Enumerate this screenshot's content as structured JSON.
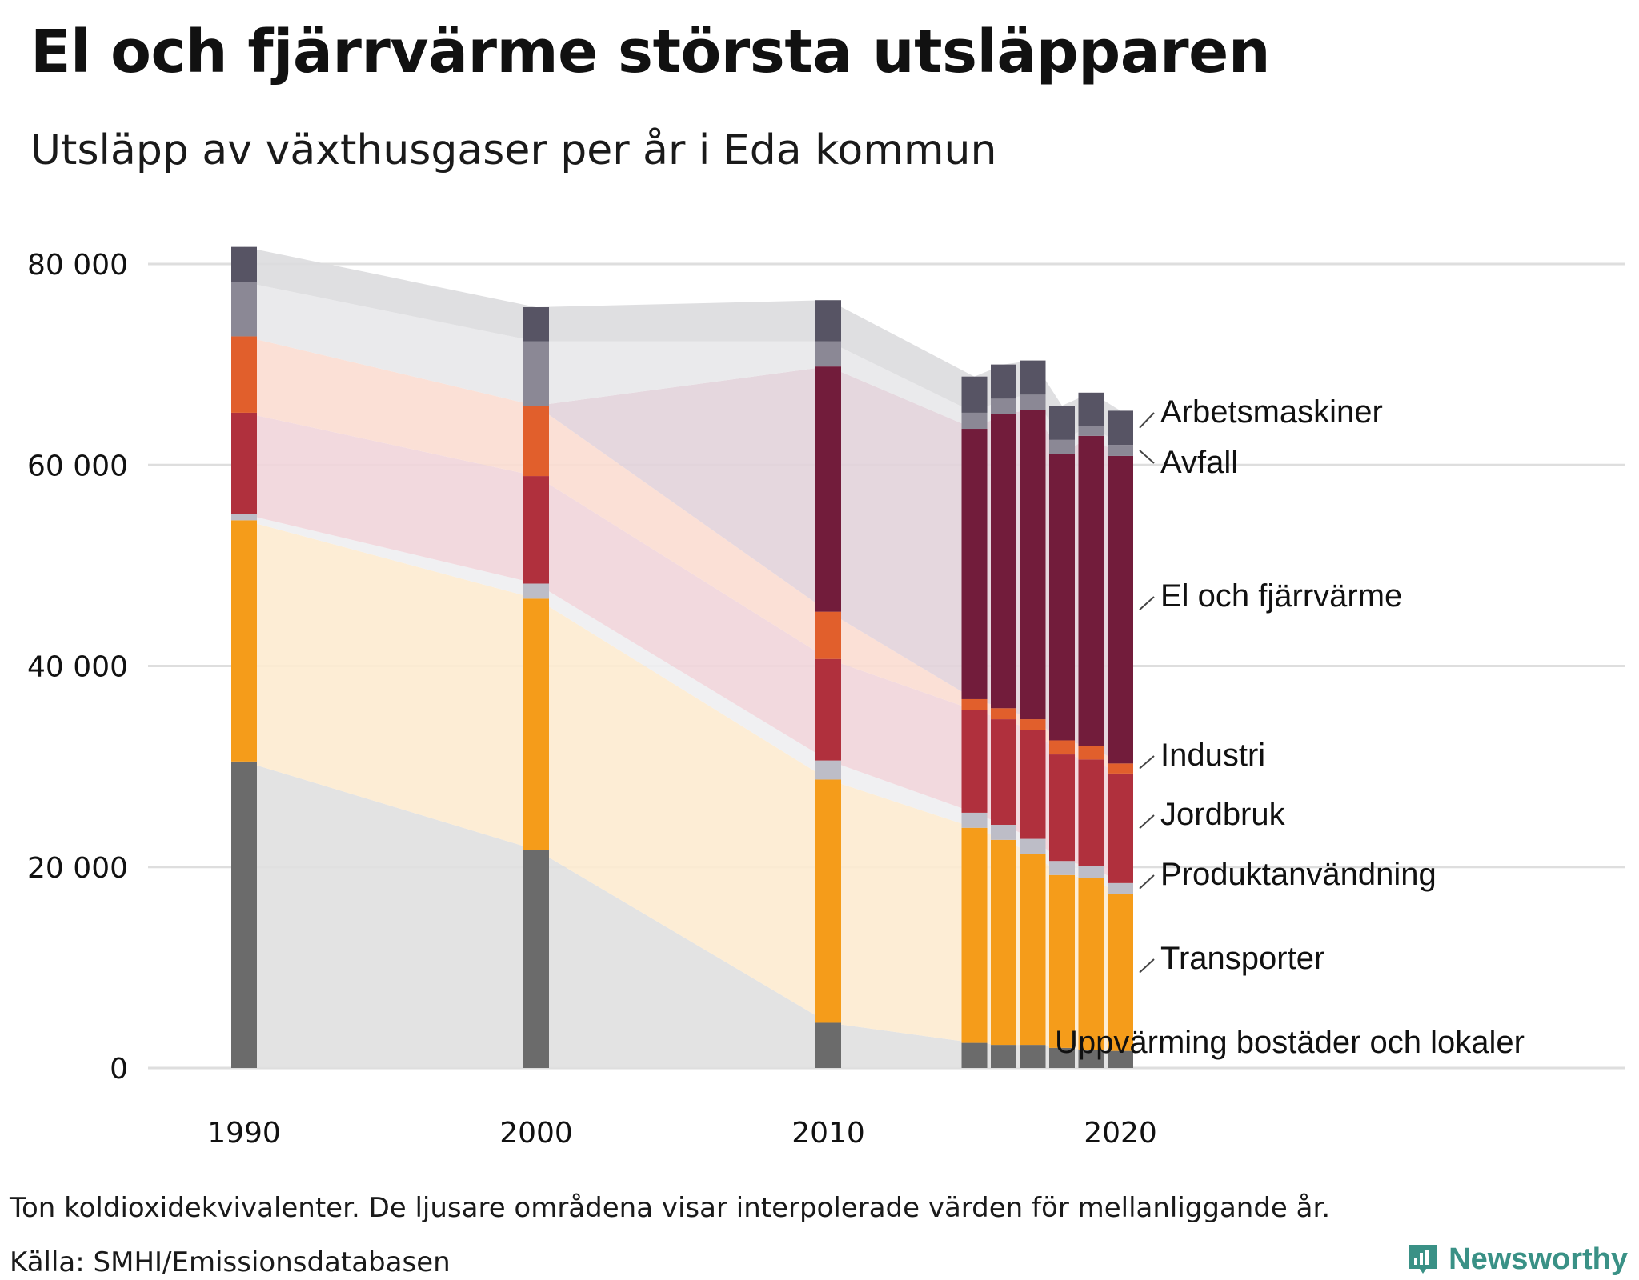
{
  "title": "El och fjärrvärme största utsläpparen",
  "subtitle": "Utsläpp av växthusgaser per år i Eda kommun",
  "footnote": "Ton koldioxidekvivalenter. De ljusare områdena visar interpolerade värden för mellanliggande år.",
  "source": "Källa: SMHI/Emissionsdatabasen",
  "brand": "Newsworthy",
  "colors": {
    "grid": "#dedede",
    "brand": "#3a9186"
  },
  "chart_data": {
    "type": "bar",
    "stacked": true,
    "x": [
      1990,
      2000,
      2010,
      2015,
      2016,
      2017,
      2018,
      2019,
      2020
    ],
    "x_ticks": [
      "1990",
      "2000",
      "2010",
      "2020"
    ],
    "ylim": [
      0,
      80000
    ],
    "y_ticks": [
      "0",
      "20 000",
      "40 000",
      "60 000",
      "80 000"
    ],
    "y_tick_values": [
      0,
      20000,
      40000,
      60000,
      80000
    ],
    "grid": true,
    "interpolated_areas": true,
    "series": [
      {
        "name": "Uppvärming bostäder och lokaler",
        "color": "#6b6b6b",
        "area_color": "#e0e0e0",
        "values": [
          30500,
          21700,
          4500,
          2500,
          2300,
          2300,
          2000,
          1800,
          1700
        ]
      },
      {
        "name": "Transporter",
        "color": "#f59c1a",
        "area_color": "#fdebd0",
        "values": [
          24000,
          25000,
          24200,
          21400,
          20400,
          19000,
          17200,
          17100,
          15600
        ]
      },
      {
        "name": "Produktanvändning",
        "color": "#bdbdc7",
        "area_color": "#eeeef1",
        "values": [
          600,
          1500,
          1900,
          1500,
          1500,
          1500,
          1400,
          1200,
          1100
        ]
      },
      {
        "name": "Jordbruk",
        "color": "#b0303d",
        "area_color": "#f1d5da",
        "values": [
          10100,
          10700,
          10100,
          10200,
          10500,
          10800,
          10600,
          10600,
          10900
        ]
      },
      {
        "name": "Industri",
        "color": "#e15f2c",
        "area_color": "#fbddd2",
        "values": [
          7600,
          7000,
          4700,
          1100,
          1100,
          1100,
          1400,
          1300,
          1000
        ]
      },
      {
        "name": "El och fjärrvärme",
        "color": "#721c3b",
        "area_color": "#e2d3da",
        "values": [
          0,
          0,
          24400,
          26900,
          29300,
          30800,
          28500,
          30900,
          30600
        ]
      },
      {
        "name": "Avfall",
        "color": "#8b8895",
        "area_color": "#e8e8ea",
        "values": [
          5400,
          6400,
          2500,
          1600,
          1500,
          1500,
          1400,
          1000,
          1100
        ]
      },
      {
        "name": "Arbetsmaskiner",
        "color": "#575464",
        "area_color": "#dcdcde",
        "values": [
          3500,
          3400,
          4100,
          3600,
          3400,
          3400,
          3400,
          3300,
          3400
        ]
      }
    ],
    "legend": "labels-right-of-last-bar"
  }
}
